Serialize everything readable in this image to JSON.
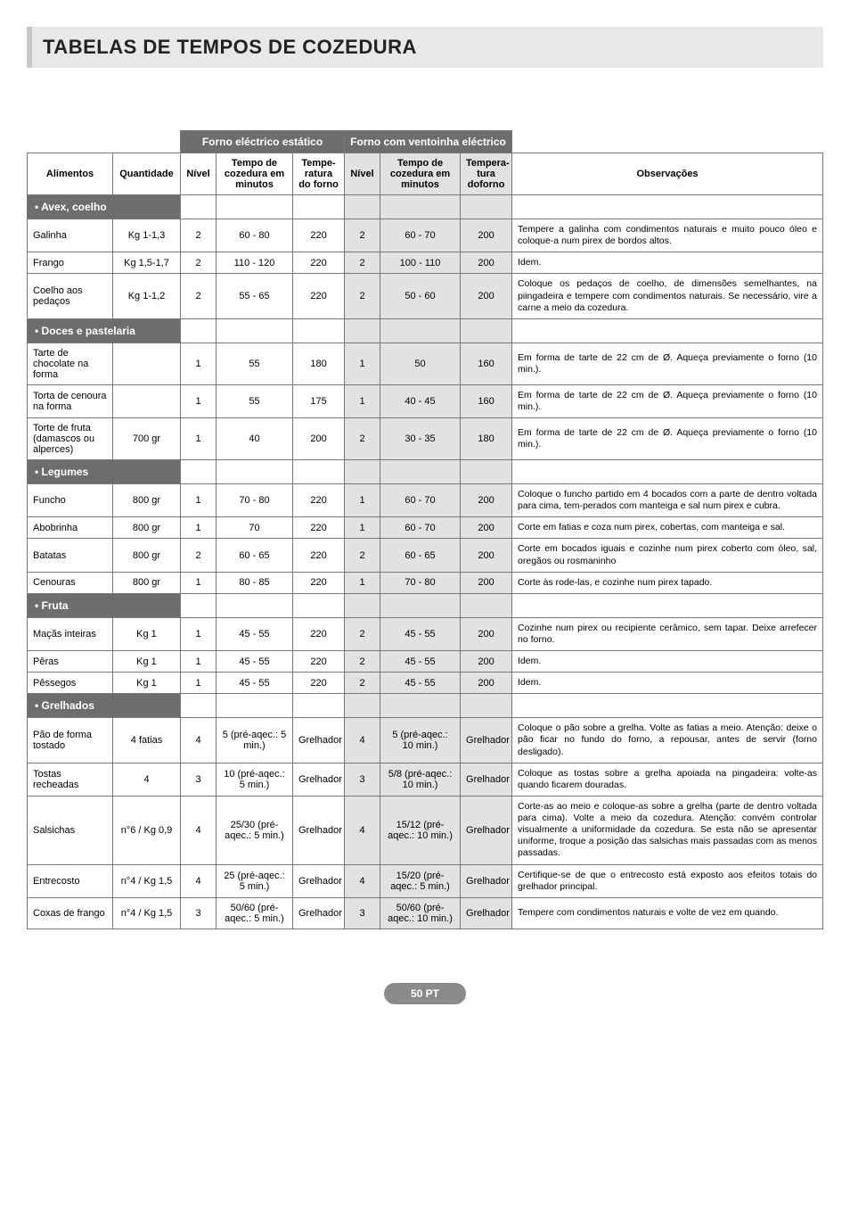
{
  "page_title": "TABELAS DE TEMPOS DE COZEDURA",
  "footer_label": "50 PT",
  "colors": {
    "header_group_bg": "#6d6d6d",
    "header_group_fg": "#ffffff",
    "fan_col_bg": "#e2e2e2",
    "border": "#777777",
    "title_bar_bg": "#e8e8e8",
    "footer_bg": "#8a8a8a"
  },
  "headers": {
    "static_group": "Forno eléctrico estático",
    "fan_group": "Forno com ventoinha eléctrico",
    "alimentos": "Alimentos",
    "quantidade": "Quantidade",
    "nivel": "Nível",
    "tempo": "Tempo de cozedura em minutos",
    "temp1": "Tempe-ratura do forno",
    "temp2": "Tempera-tura doforno",
    "obs": "Observações"
  },
  "sections": [
    {
      "title": "• Avex, coelho",
      "rows": [
        {
          "alimento": "Galinha",
          "qty": "Kg 1-1,3",
          "n1": "2",
          "t1": "60 - 80",
          "tmp1": "220",
          "n2": "2",
          "t2": "60 - 70",
          "tmp2": "200",
          "obs": "Tempere a galinha com condimentos naturais e muito pouco óleo e coloque-a num pirex de bordos altos."
        },
        {
          "alimento": "Frango",
          "qty": "Kg 1,5-1,7",
          "n1": "2",
          "t1": "110 - 120",
          "tmp1": "220",
          "n2": "2",
          "t2": "100 - 110",
          "tmp2": "200",
          "obs": "Idem."
        },
        {
          "alimento": "Coelho aos pedaços",
          "qty": "Kg 1-1,2",
          "n1": "2",
          "t1": "55 - 65",
          "tmp1": "220",
          "n2": "2",
          "t2": "50 - 60",
          "tmp2": "200",
          "obs": "Coloque os pedaços de coelho, de dimensões semelhantes, na piingadeira e tempere com condimentos naturais. Se necessário, vire a carne a meio da cozedura."
        }
      ]
    },
    {
      "title": "• Doces e pastelaria",
      "rows": [
        {
          "alimento": "Tarte de chocolate na forma",
          "qty": "",
          "n1": "1",
          "t1": "55",
          "tmp1": "180",
          "n2": "1",
          "t2": "50",
          "tmp2": "160",
          "obs": "Em forma de tarte de 22 cm de Ø. Aqueça previamente o forno (10 min.)."
        },
        {
          "alimento": "Torta de cenoura na forma",
          "qty": "",
          "n1": "1",
          "t1": "55",
          "tmp1": "175",
          "n2": "1",
          "t2": "40 - 45",
          "tmp2": "160",
          "obs": "Em forma de tarte de 22 cm de Ø. Aqueça previamente o forno (10 min.)."
        },
        {
          "alimento": "Torte de fruta (damascos ou alperces)",
          "qty": "700 gr",
          "n1": "1",
          "t1": "40",
          "tmp1": "200",
          "n2": "2",
          "t2": "30 - 35",
          "tmp2": "180",
          "obs": "Em forma de tarte de 22 cm de Ø. Aqueça previamente o forno (10 min.)."
        }
      ]
    },
    {
      "title": "• Legumes",
      "rows": [
        {
          "alimento": "Funcho",
          "qty": "800 gr",
          "n1": "1",
          "t1": "70 - 80",
          "tmp1": "220",
          "n2": "1",
          "t2": "60 - 70",
          "tmp2": "200",
          "obs": "Coloque o funcho partido em 4 bocados com a parte de dentro voltada para cima, tem-perados com manteiga e sal num pirex e cubra."
        },
        {
          "alimento": "Abobrinha",
          "qty": "800 gr",
          "n1": "1",
          "t1": "70",
          "tmp1": "220",
          "n2": "1",
          "t2": "60 - 70",
          "tmp2": "200",
          "obs": "Corte em fatias e coza num pirex, cobertas, com manteiga e sal."
        },
        {
          "alimento": "Batatas",
          "qty": "800 gr",
          "n1": "2",
          "t1": "60 - 65",
          "tmp1": "220",
          "n2": "2",
          "t2": "60 - 65",
          "tmp2": "200",
          "obs": "Corte em bocados iguais e cozinhe num pirex coberto com óleo, sal, oregãos ou rosmaninho"
        },
        {
          "alimento": "Cenouras",
          "qty": "800 gr",
          "n1": "1",
          "t1": "80 - 85",
          "tmp1": "220",
          "n2": "1",
          "t2": "70 - 80",
          "tmp2": "200",
          "obs": "Corte às rode-las, e cozinhe num pirex tapado."
        }
      ]
    },
    {
      "title": "• Fruta",
      "rows": [
        {
          "alimento": "Maçãs inteiras",
          "qty": "Kg 1",
          "n1": "1",
          "t1": "45 - 55",
          "tmp1": "220",
          "n2": "2",
          "t2": "45 - 55",
          "tmp2": "200",
          "obs": "Cozinhe num pirex ou recipiente cerâmico, sem tapar. Deixe arrefecer no forno."
        },
        {
          "alimento": "Pêras",
          "qty": "Kg 1",
          "n1": "1",
          "t1": "45 - 55",
          "tmp1": "220",
          "n2": "2",
          "t2": "45 - 55",
          "tmp2": "200",
          "obs": "Idem."
        },
        {
          "alimento": "Pêssegos",
          "qty": "Kg 1",
          "n1": "1",
          "t1": "45 - 55",
          "tmp1": "220",
          "n2": "2",
          "t2": "45 - 55",
          "tmp2": "200",
          "obs": "Idem."
        }
      ]
    },
    {
      "title": "• Grelhados",
      "rows": [
        {
          "alimento": "Pão de forma tostado",
          "qty": "4 fatias",
          "n1": "4",
          "t1": "5 (pré-aqec.: 5 min.)",
          "tmp1": "Grelhador",
          "n2": "4",
          "t2": "5 (pré-aqec.: 10 min.)",
          "tmp2": "Grelhador",
          "obs": "Coloque o pão sobre a grelha. Volte as fatias a meio. Atenção: deixe o pão ficar no fundo do forno, a repousar, antes de servir (forno desligado)."
        },
        {
          "alimento": "Tostas recheadas",
          "qty": "4",
          "n1": "3",
          "t1": "10 (pré-aqec.: 5 min.)",
          "tmp1": "Grelhador",
          "n2": "3",
          "t2": "5/8 (pré-aqec.: 10 min.)",
          "tmp2": "Grelhador",
          "obs": "Coloque as tostas sobre a grelha apoiada na pingadeira: volte-as quando ficarem douradas."
        },
        {
          "alimento": "Salsichas",
          "qty": "n°6 / Kg 0,9",
          "n1": "4",
          "t1": "25/30 (pré-aqec.: 5 min.)",
          "tmp1": "Grelhador",
          "n2": "4",
          "t2": "15/12 (pré-aqec.: 10 min.)",
          "tmp2": "Grelhador",
          "obs": "Corte-as ao meio e coloque-as sobre a grelha (parte de dentro voltada para cima). Volte a meio da cozedura. Atenção: convém controlar visualmente a uniformidade da cozedura. Se esta não se apresentar uniforme, troque a posição das salsichas mais passadas com as menos passadas."
        },
        {
          "alimento": "Entrecosto",
          "qty": "n°4 / Kg 1,5",
          "n1": "4",
          "t1": "25 (pré-aqec.: 5 min.)",
          "tmp1": "Grelhador",
          "n2": "4",
          "t2": "15/20 (pré-aqec.: 5 min.)",
          "tmp2": "Grelhador",
          "obs": "Certifique-se de que o entrecosto está exposto aos efeitos totais do grelhador principal."
        },
        {
          "alimento": "Coxas de frango",
          "qty": "n°4 / Kg 1,5",
          "n1": "3",
          "t1": "50/60 (pré-aqec.: 5 min.)",
          "tmp1": "Grelhador",
          "n2": "3",
          "t2": "50/60 (pré-aqec.: 10 min.)",
          "tmp2": "Grelhador",
          "obs": "Tempere com condimentos naturais e volte de vez em quando."
        }
      ]
    }
  ]
}
